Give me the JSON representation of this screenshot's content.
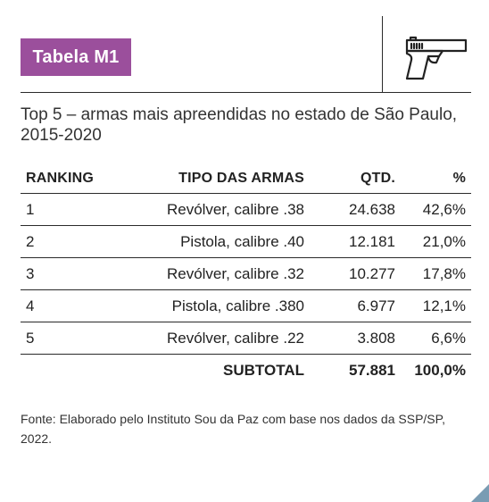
{
  "badge": {
    "label": "Tabela M1"
  },
  "icons": {
    "gun": "pistol-icon",
    "corner": "corner-triangle-icon"
  },
  "colors": {
    "badge_bg": "#9b4f9c",
    "corner": "#7a9cb3"
  },
  "subtitle": "Top 5 – armas mais apreendidas no estado de São Paulo, 2015-2020",
  "table": {
    "headers": {
      "rank": "RANKING",
      "type": "TIPO DAS ARMAS",
      "qtd": "QTD.",
      "pct": "%"
    },
    "rows": [
      {
        "rank": "1",
        "type": "Revólver, calibre .38",
        "qtd": "24.638",
        "pct": "42,6%"
      },
      {
        "rank": "2",
        "type": "Pistola, calibre .40",
        "qtd": "12.181",
        "pct": "21,0%"
      },
      {
        "rank": "3",
        "type": "Revólver, calibre .32",
        "qtd": "10.277",
        "pct": "17,8%"
      },
      {
        "rank": "4",
        "type": "Pistola, calibre .380",
        "qtd": "6.977",
        "pct": "12,1%"
      },
      {
        "rank": "5",
        "type": "Revólver, calibre .22",
        "qtd": "3.808",
        "pct": "6,6%"
      }
    ],
    "subtotal": {
      "label": "SUBTOTAL",
      "qtd": "57.881",
      "pct": "100,0%"
    }
  },
  "footnote": "Fonte: Elaborado pelo Instituto Sou da Paz com base nos dados da SSP/SP, 2022."
}
